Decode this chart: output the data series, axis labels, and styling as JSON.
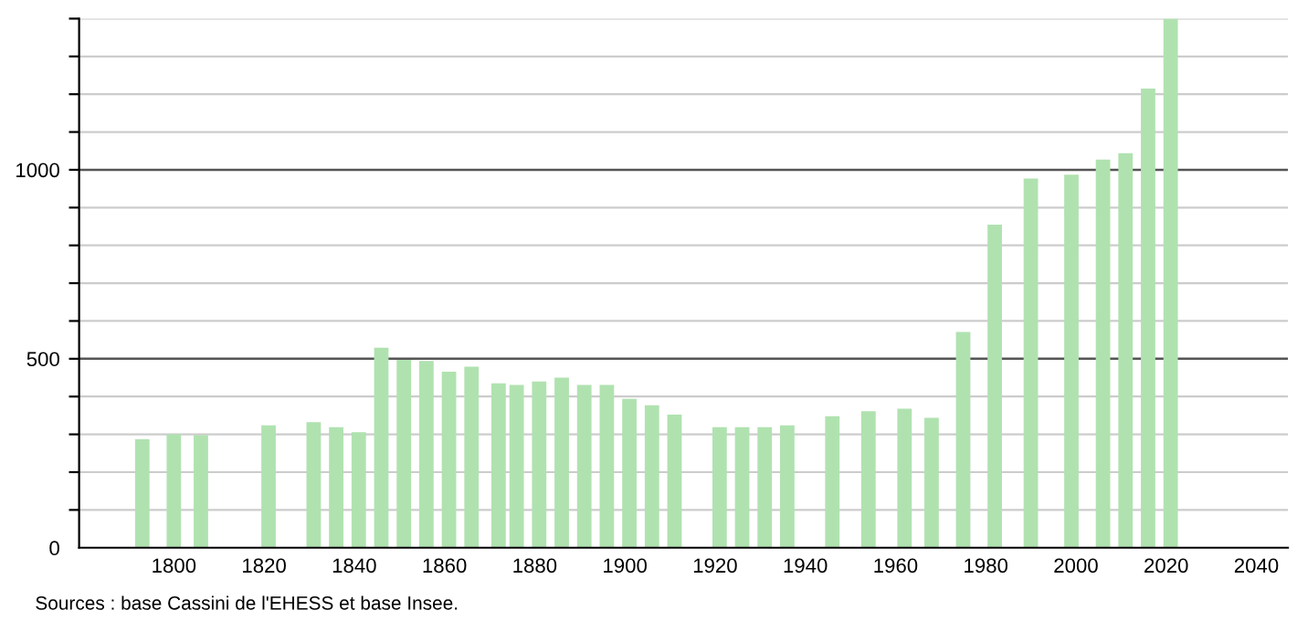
{
  "chart_data": {
    "type": "bar",
    "x": [
      1793,
      1800,
      1806,
      1821,
      1831,
      1836,
      1841,
      1846,
      1851,
      1856,
      1861,
      1866,
      1872,
      1876,
      1881,
      1886,
      1891,
      1896,
      1901,
      1906,
      1911,
      1921,
      1926,
      1931,
      1936,
      1946,
      1954,
      1962,
      1968,
      1975,
      1982,
      1990,
      1999,
      2006,
      2011,
      2016,
      2021
    ],
    "values": [
      287,
      300,
      298,
      324,
      332,
      319,
      306,
      529,
      497,
      494,
      466,
      479,
      435,
      431,
      440,
      450,
      431,
      431,
      394,
      377,
      352,
      319,
      319,
      319,
      324,
      348,
      361,
      368,
      344,
      571,
      855,
      977,
      987,
      1027,
      1044,
      1215,
      1400
    ],
    "color": "#b0e2b0",
    "xlim": [
      1779,
      2047
    ],
    "xticks": [
      1800,
      1820,
      1840,
      1860,
      1880,
      1900,
      1920,
      1940,
      1960,
      1980,
      2000,
      2020,
      2040
    ],
    "ylim": [
      0,
      1400
    ],
    "yticks": [
      0,
      {
        "value": 100,
        "label": null
      },
      {
        "value": 200,
        "label": null
      },
      {
        "value": 300,
        "label": null
      },
      {
        "value": 400,
        "label": null
      },
      500,
      {
        "value": 600,
        "label": null
      },
      {
        "value": 700,
        "label": null
      },
      {
        "value": 800,
        "label": null
      },
      {
        "value": 900,
        "label": null
      },
      1000,
      {
        "value": 1100,
        "label": null
      },
      {
        "value": 1200,
        "label": null
      },
      {
        "value": 1300,
        "label": null
      },
      {
        "value": 1400,
        "label": null
      }
    ],
    "grid": "y",
    "annotations": [
      "Sources : base Cassini de l'EHESS et base Insee."
    ]
  }
}
